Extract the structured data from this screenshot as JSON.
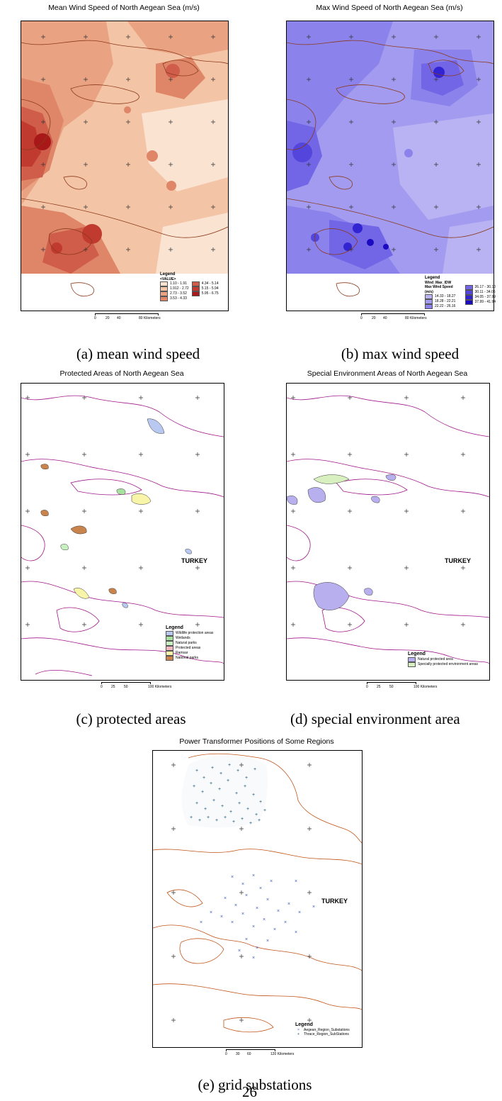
{
  "maps": {
    "a": {
      "title": "Mean Wind Speed of North Aegean Sea (m/s)",
      "caption": "(a) mean wind speed",
      "legend": {
        "title": "Legend",
        "subtitle": "<VALUE>",
        "items": [
          {
            "label": "1.10 - 1.91",
            "color": "#fbe3d2"
          },
          {
            "label": "1.912 - 2.72",
            "color": "#f4c4a6"
          },
          {
            "label": "2.73 - 3.52",
            "color": "#e9a383"
          },
          {
            "label": "3.53 - 4.33",
            "color": "#df8668"
          },
          {
            "label": "4.34 - 5.14",
            "color": "#cf5d4a"
          },
          {
            "label": "5.15 - 5.94",
            "color": "#c13a30"
          },
          {
            "label": "5.95 - 6.75",
            "color": "#a81818"
          }
        ]
      },
      "scale": {
        "ticks": [
          "0",
          "20",
          "40",
          "80 Kilometers"
        ]
      }
    },
    "b": {
      "title": "Max Wind Speed of North Aegean Sea (m/s)",
      "caption": "(b) max wind speed",
      "legend": {
        "title": "Legend",
        "field": "Wind_Max_IDW",
        "subtitle": "Max Wind Speed (m/s)",
        "items": [
          {
            "label": "14.33 - 18.27",
            "color": "#b9b3f3"
          },
          {
            "label": "18.28 - 22.21",
            "color": "#a39bf0"
          },
          {
            "label": "22.22 - 26.16",
            "color": "#8c82ec"
          },
          {
            "label": "26.17 - 30.10",
            "color": "#7266e6"
          },
          {
            "label": "30.11 - 34.05",
            "color": "#5446dd"
          },
          {
            "label": "34.05 - 37.99",
            "color": "#3324d2"
          },
          {
            "label": "37.99 - 41.94",
            "color": "#1a0ac0"
          }
        ]
      },
      "scale": {
        "ticks": [
          "0",
          "20",
          "40",
          "80 Kilometers"
        ]
      }
    },
    "c": {
      "title": "Protected Areas of North Aegean Sea",
      "caption": "(c) protected areas",
      "country": "TURKEY",
      "legend": {
        "title": "Legend",
        "items": [
          {
            "label": "Wildlife protection areas",
            "color": "#b8c8f0"
          },
          {
            "label": "Wetlands",
            "color": "#a8e0a0"
          },
          {
            "label": "Natural parks",
            "color": "#c8f0c0"
          },
          {
            "label": "Protected areas",
            "color": "#f4b8c0"
          },
          {
            "label": "Ramsar",
            "color": "#f8f4a8"
          },
          {
            "label": "National parks",
            "color": "#c8844c"
          }
        ]
      },
      "scale": {
        "ticks": [
          "0",
          "25",
          "50",
          "100 Kilometers"
        ]
      }
    },
    "d": {
      "title": "Special Environment Areas of North Aegean Sea",
      "caption": "(d) special environment area",
      "country": "TURKEY",
      "legend": {
        "title": "Legend",
        "items": [
          {
            "label": "Natural protected area",
            "color": "#b8b0ee"
          },
          {
            "label": "Specially protected environment areas",
            "color": "#d8f0c0"
          }
        ]
      },
      "scale": {
        "ticks": [
          "0",
          "25",
          "50",
          "100 Kilometers"
        ]
      }
    },
    "e": {
      "title": "Power Transformer Positions of Some Regions",
      "caption": "(e) grid substations",
      "country": "TURKEY",
      "legend": {
        "title": "Legend",
        "items": [
          {
            "label": "Aegean_Region_Substations",
            "symbol": "×",
            "color": "#3a58b0"
          },
          {
            "label": "Thrace_Region_SubStations",
            "symbol": "+",
            "color": "#0b4a6a"
          }
        ]
      },
      "scale": {
        "ticks": [
          "0",
          "30",
          "60",
          "120 Kilometers"
        ]
      }
    }
  },
  "page_number": "26",
  "colors": {
    "coast_brown": "#8a3a1a",
    "coast_magenta": "#a0188a",
    "coast_orange": "#c0561a",
    "thrace_points": "#0b4a6a",
    "aegean_points": "#3a58b0"
  }
}
